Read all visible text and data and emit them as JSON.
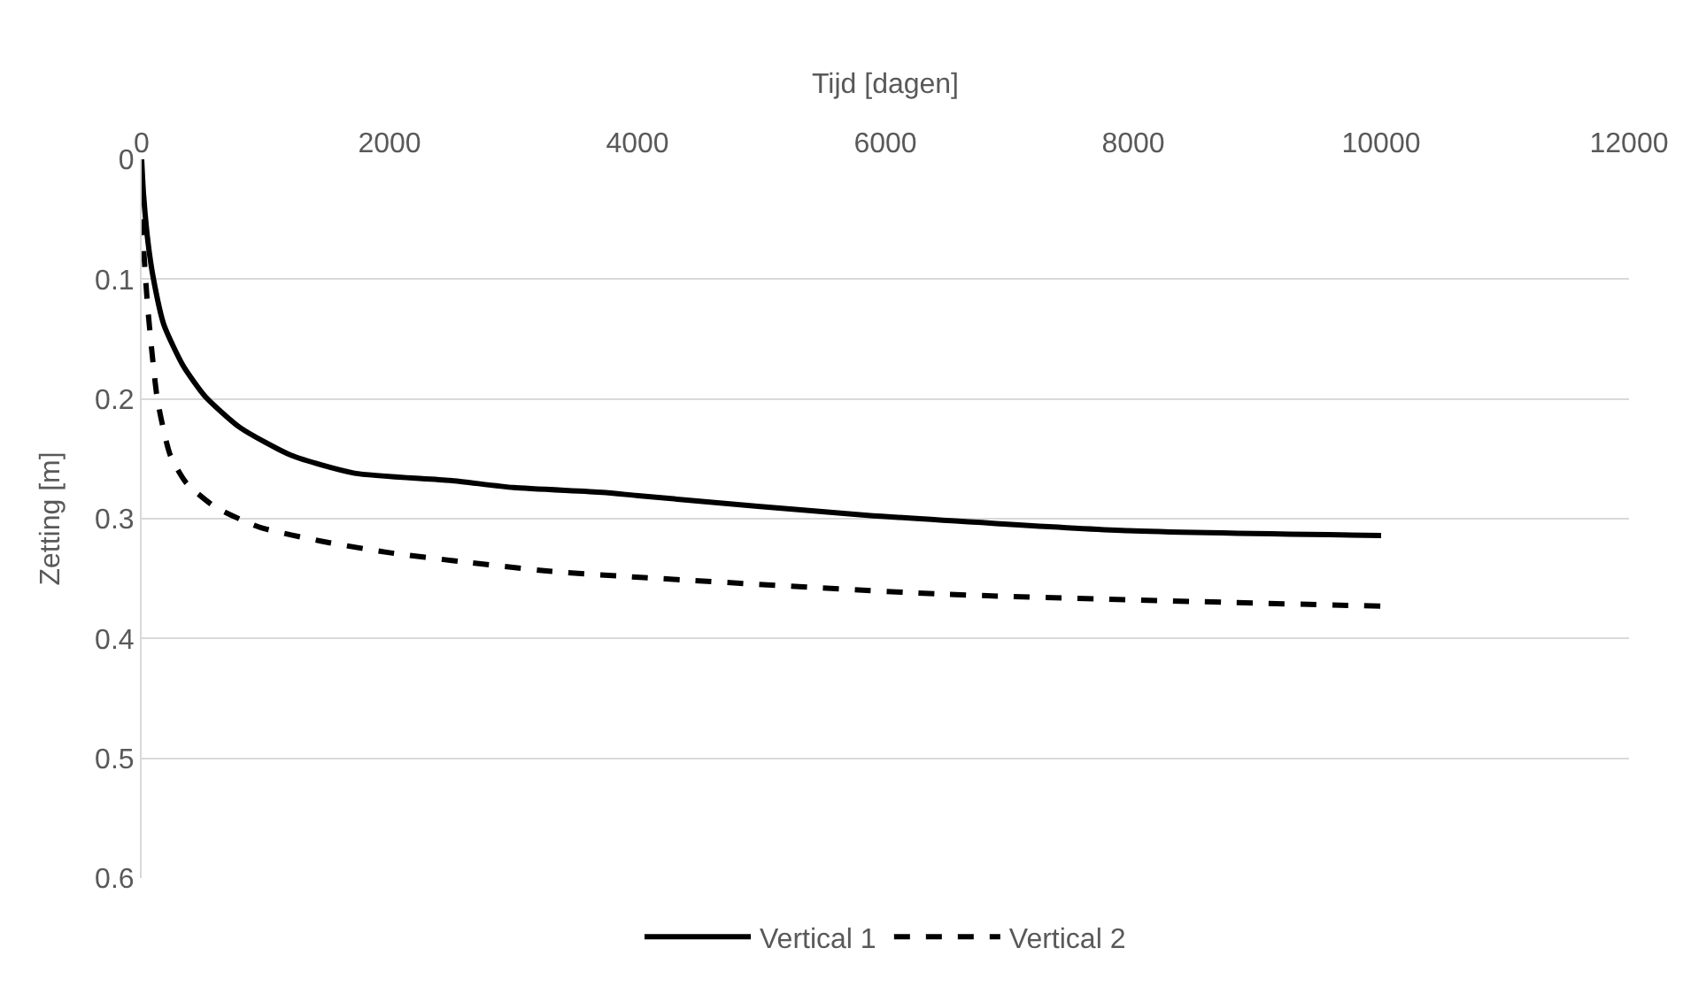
{
  "chart_data": {
    "type": "line",
    "xlabel": "Tijd [dagen]",
    "ylabel": "Zetting [m]",
    "xlim": [
      0,
      12000
    ],
    "xticks": [
      0,
      2000,
      4000,
      6000,
      8000,
      10000,
      12000
    ],
    "ylim": [
      0.6,
      0
    ],
    "yticks": [
      0,
      0.1,
      0.2,
      0.3,
      0.4,
      0.5,
      0.6
    ],
    "grid": "y",
    "legend": "bottom",
    "marker": "none",
    "series": [
      {
        "name": "Vertical 1",
        "color": "#000000",
        "line_style": "solid",
        "x": [
          0,
          15,
          51,
          92,
          179,
          333,
          513,
          795,
          1205,
          1718,
          2487,
          3000,
          3717,
          4026,
          5837,
          7957,
          10000
        ],
        "values": [
          0,
          0.029,
          0.069,
          0.098,
          0.138,
          0.172,
          0.198,
          0.224,
          0.247,
          0.262,
          0.268,
          0.274,
          0.278,
          0.281,
          0.297,
          0.31,
          0.314
        ]
      },
      {
        "name": "Vertical 2",
        "color": "#000000",
        "line_style": "dashed",
        "x": [
          0,
          51,
          128,
          231,
          359,
          590,
          949,
          1462,
          1974,
          2590,
          3308,
          3870,
          6466,
          10000
        ],
        "values": [
          0.05,
          0.126,
          0.201,
          0.247,
          0.27,
          0.29,
          0.307,
          0.319,
          0.328,
          0.336,
          0.344,
          0.348,
          0.363,
          0.373
        ]
      }
    ]
  }
}
